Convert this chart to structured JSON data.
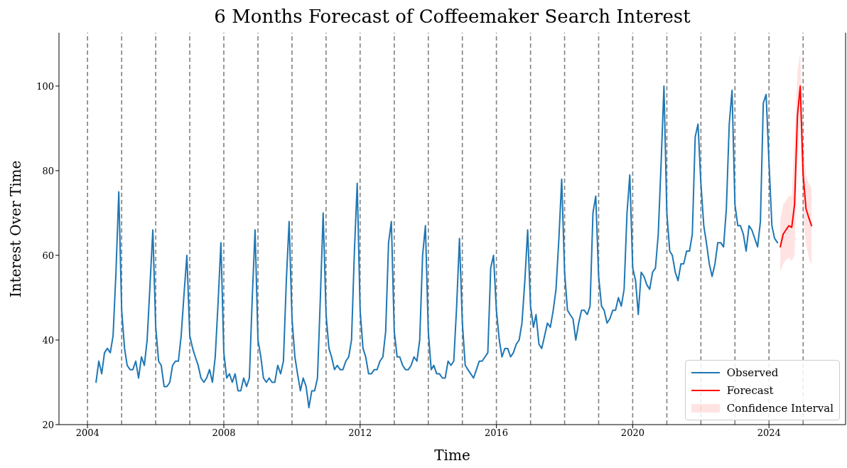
{
  "chart_data": {
    "type": "line",
    "title": "6 Months Forecast of Coffeemaker Search Interest",
    "xlabel": "Time",
    "ylabel": "Interest Over Time",
    "xlim": [
      "2003-03",
      "2026-04"
    ],
    "xticks": [
      "2004",
      "2008",
      "2012",
      "2016",
      "2020",
      "2024"
    ],
    "annotations": [
      "Confidence Interval"
    ],
    "ylim": [
      20,
      112.6
    ],
    "yticks": [
      20,
      40,
      60,
      80,
      100
    ],
    "legend": "bottom right",
    "marker": "none",
    "line_style": "solid",
    "series": [
      {
        "name": "Observed",
        "color": "#1f77b4",
        "x": [
          "2004-04",
          "2004-05",
          "2004-06",
          "2004-07",
          "2004-08",
          "2004-09",
          "2004-10",
          "2004-11",
          "2004-12",
          "2005-01",
          "2005-02",
          "2005-03",
          "2005-04",
          "2005-05",
          "2005-06",
          "2005-07",
          "2005-08",
          "2005-09",
          "2005-10",
          "2005-11",
          "2005-12",
          "2006-01",
          "2006-02",
          "2006-03",
          "2006-04",
          "2006-05",
          "2006-06",
          "2006-07",
          "2006-08",
          "2006-09",
          "2006-10",
          "2006-11",
          "2006-12",
          "2007-01",
          "2007-02",
          "2007-03",
          "2007-04",
          "2007-05",
          "2007-06",
          "2007-07",
          "2007-08",
          "2007-09",
          "2007-10",
          "2007-11",
          "2007-12",
          "2008-01",
          "2008-02",
          "2008-03",
          "2008-04",
          "2008-05",
          "2008-06",
          "2008-07",
          "2008-08",
          "2008-09",
          "2008-10",
          "2008-11",
          "2008-12",
          "2009-01",
          "2009-02",
          "2009-03",
          "2009-04",
          "2009-05",
          "2009-06",
          "2009-07",
          "2009-08",
          "2009-09",
          "2009-10",
          "2009-11",
          "2009-12",
          "2010-01",
          "2010-02",
          "2010-03",
          "2010-04",
          "2010-05",
          "2010-06",
          "2010-07",
          "2010-08",
          "2010-09",
          "2010-10",
          "2010-11",
          "2010-12",
          "2011-01",
          "2011-02",
          "2011-03",
          "2011-04",
          "2011-05",
          "2011-06",
          "2011-07",
          "2011-08",
          "2011-09",
          "2011-10",
          "2011-11",
          "2011-12",
          "2012-01",
          "2012-02",
          "2012-03",
          "2012-04",
          "2012-05",
          "2012-06",
          "2012-07",
          "2012-08",
          "2012-09",
          "2012-10",
          "2012-11",
          "2012-12",
          "2013-01",
          "2013-02",
          "2013-03",
          "2013-04",
          "2013-05",
          "2013-06",
          "2013-07",
          "2013-08",
          "2013-09",
          "2013-10",
          "2013-11",
          "2013-12",
          "2014-01",
          "2014-02",
          "2014-03",
          "2014-04",
          "2014-05",
          "2014-06",
          "2014-07",
          "2014-08",
          "2014-09",
          "2014-10",
          "2014-11",
          "2014-12",
          "2015-01",
          "2015-02",
          "2015-03",
          "2015-04",
          "2015-05",
          "2015-06",
          "2015-07",
          "2015-08",
          "2015-09",
          "2015-10",
          "2015-11",
          "2015-12",
          "2016-01",
          "2016-02",
          "2016-03",
          "2016-04",
          "2016-05",
          "2016-06",
          "2016-07",
          "2016-08",
          "2016-09",
          "2016-10",
          "2016-11",
          "2016-12",
          "2017-01",
          "2017-02",
          "2017-03",
          "2017-04",
          "2017-05",
          "2017-06",
          "2017-07",
          "2017-08",
          "2017-09",
          "2017-10",
          "2017-11",
          "2017-12",
          "2018-01",
          "2018-02",
          "2018-03",
          "2018-04",
          "2018-05",
          "2018-06",
          "2018-07",
          "2018-08",
          "2018-09",
          "2018-10",
          "2018-11",
          "2018-12",
          "2019-01",
          "2019-02",
          "2019-03",
          "2019-04",
          "2019-05",
          "2019-06",
          "2019-07",
          "2019-08",
          "2019-09",
          "2019-10",
          "2019-11",
          "2019-12",
          "2020-01",
          "2020-02",
          "2020-03",
          "2020-04",
          "2020-05",
          "2020-06",
          "2020-07",
          "2020-08",
          "2020-09",
          "2020-10",
          "2020-11",
          "2020-12",
          "2021-01",
          "2021-02",
          "2021-03",
          "2021-04",
          "2021-05",
          "2021-06",
          "2021-07",
          "2021-08",
          "2021-09",
          "2021-10",
          "2021-11",
          "2021-12",
          "2022-01",
          "2022-02",
          "2022-03",
          "2022-04",
          "2022-05",
          "2022-06",
          "2022-07",
          "2022-08",
          "2022-09",
          "2022-10",
          "2022-11",
          "2022-12",
          "2023-01",
          "2023-02",
          "2023-03",
          "2023-04",
          "2023-05",
          "2023-06",
          "2023-07",
          "2023-08",
          "2023-09",
          "2023-10",
          "2023-11",
          "2023-12",
          "2024-01",
          "2024-02",
          "2024-03",
          "2024-04"
        ],
        "values": [
          30,
          35,
          32,
          37,
          38,
          37,
          41,
          56,
          75,
          47,
          38,
          34,
          33,
          33,
          35,
          31,
          36,
          34,
          40,
          53,
          66,
          43,
          35,
          34,
          29,
          29,
          30,
          34,
          35,
          35,
          41,
          51,
          60,
          41,
          38,
          36,
          34,
          31,
          30,
          31,
          33,
          30,
          36,
          49,
          63,
          37,
          31,
          32,
          30,
          32,
          28,
          28,
          31,
          29,
          31,
          50,
          66,
          40,
          36,
          31,
          30,
          31,
          30,
          30,
          34,
          32,
          35,
          54,
          68,
          45,
          36,
          32,
          28,
          31,
          29,
          24,
          28,
          28,
          31,
          50,
          70,
          46,
          38,
          36,
          33,
          34,
          33,
          33,
          35,
          36,
          40,
          61,
          77,
          47,
          38,
          36,
          32,
          32,
          33,
          33,
          35,
          36,
          42,
          63,
          68,
          42,
          36,
          36,
          34,
          33,
          33,
          34,
          36,
          35,
          40,
          60,
          67,
          42,
          33,
          34,
          32,
          32,
          31,
          31,
          35,
          34,
          35,
          48,
          64,
          44,
          34,
          33,
          32,
          31,
          33,
          35,
          35,
          36,
          37,
          57,
          60,
          47,
          40,
          36,
          38,
          38,
          36,
          37,
          39,
          40,
          44,
          54,
          66,
          48,
          43,
          46,
          39,
          38,
          41,
          44,
          43,
          47,
          52,
          64,
          78,
          56,
          47,
          46,
          45,
          40,
          44,
          47,
          47,
          46,
          48,
          70,
          74,
          55,
          48,
          47,
          44,
          45,
          47,
          47,
          50,
          48,
          52,
          70,
          79,
          57,
          54,
          46,
          56,
          55,
          53,
          52,
          56,
          57,
          65,
          82,
          100,
          70,
          61,
          60,
          56,
          54,
          58,
          58,
          61,
          61,
          65,
          88,
          91,
          77,
          67,
          63,
          58,
          55,
          58,
          63,
          63,
          62,
          71,
          91,
          99,
          72,
          67,
          67,
          65,
          61,
          67,
          66,
          64,
          62,
          68,
          96,
          98,
          82,
          67,
          64,
          63
        ]
      },
      {
        "name": "Forecast",
        "color": "#ff0000",
        "x": [
          "2024-05",
          "2024-06",
          "2024-07",
          "2024-08",
          "2024-09",
          "2024-10",
          "2024-11",
          "2024-12",
          "2025-01",
          "2025-02",
          "2025-03",
          "2025-04"
        ],
        "values": [
          62,
          65,
          66,
          67,
          66.6,
          72,
          93,
          100,
          79,
          71,
          69,
          67
        ],
        "lower": [
          56,
          58,
          59,
          59.4,
          58.6,
          60,
          82,
          92,
          69,
          62.6,
          59.7,
          57.5
        ],
        "upper": [
          68.5,
          72,
          73,
          74,
          74,
          88,
          103.5,
          108,
          86.6,
          79,
          77,
          76
        ]
      }
    ],
    "ref_lines": [
      {
        "axis": "x",
        "value": "2004",
        "color": "#808080",
        "line_style": "dashed"
      },
      {
        "axis": "x",
        "value": "2005",
        "color": "#808080",
        "line_style": "dashed"
      },
      {
        "axis": "x",
        "value": "2006",
        "color": "#808080",
        "line_style": "dashed"
      },
      {
        "axis": "x",
        "value": "2007",
        "color": "#808080",
        "line_style": "dashed"
      },
      {
        "axis": "x",
        "value": "2008",
        "color": "#808080",
        "line_style": "dashed"
      },
      {
        "axis": "x",
        "value": "2009",
        "color": "#808080",
        "line_style": "dashed"
      },
      {
        "axis": "x",
        "value": "2010",
        "color": "#808080",
        "line_style": "dashed"
      },
      {
        "axis": "x",
        "value": "2011",
        "color": "#808080",
        "line_style": "dashed"
      },
      {
        "axis": "x",
        "value": "2012",
        "color": "#808080",
        "line_style": "dashed"
      },
      {
        "axis": "x",
        "value": "2013",
        "color": "#808080",
        "line_style": "dashed"
      },
      {
        "axis": "x",
        "value": "2014",
        "color": "#808080",
        "line_style": "dashed"
      },
      {
        "axis": "x",
        "value": "2015",
        "color": "#808080",
        "line_style": "dashed"
      },
      {
        "axis": "x",
        "value": "2016",
        "color": "#808080",
        "line_style": "dashed"
      },
      {
        "axis": "x",
        "value": "2017",
        "color": "#808080",
        "line_style": "dashed"
      },
      {
        "axis": "x",
        "value": "2018",
        "color": "#808080",
        "line_style": "dashed"
      },
      {
        "axis": "x",
        "value": "2019",
        "color": "#808080",
        "line_style": "dashed"
      },
      {
        "axis": "x",
        "value": "2020",
        "color": "#808080",
        "line_style": "dashed"
      },
      {
        "axis": "x",
        "value": "2021",
        "color": "#808080",
        "line_style": "dashed"
      },
      {
        "axis": "x",
        "value": "2022",
        "color": "#808080",
        "line_style": "dashed"
      },
      {
        "axis": "x",
        "value": "2023",
        "color": "#808080",
        "line_style": "dashed"
      },
      {
        "axis": "x",
        "value": "2024",
        "color": "#808080",
        "line_style": "dashed"
      },
      {
        "axis": "x",
        "value": "2025",
        "color": "#808080",
        "line_style": "dashed"
      }
    ]
  }
}
